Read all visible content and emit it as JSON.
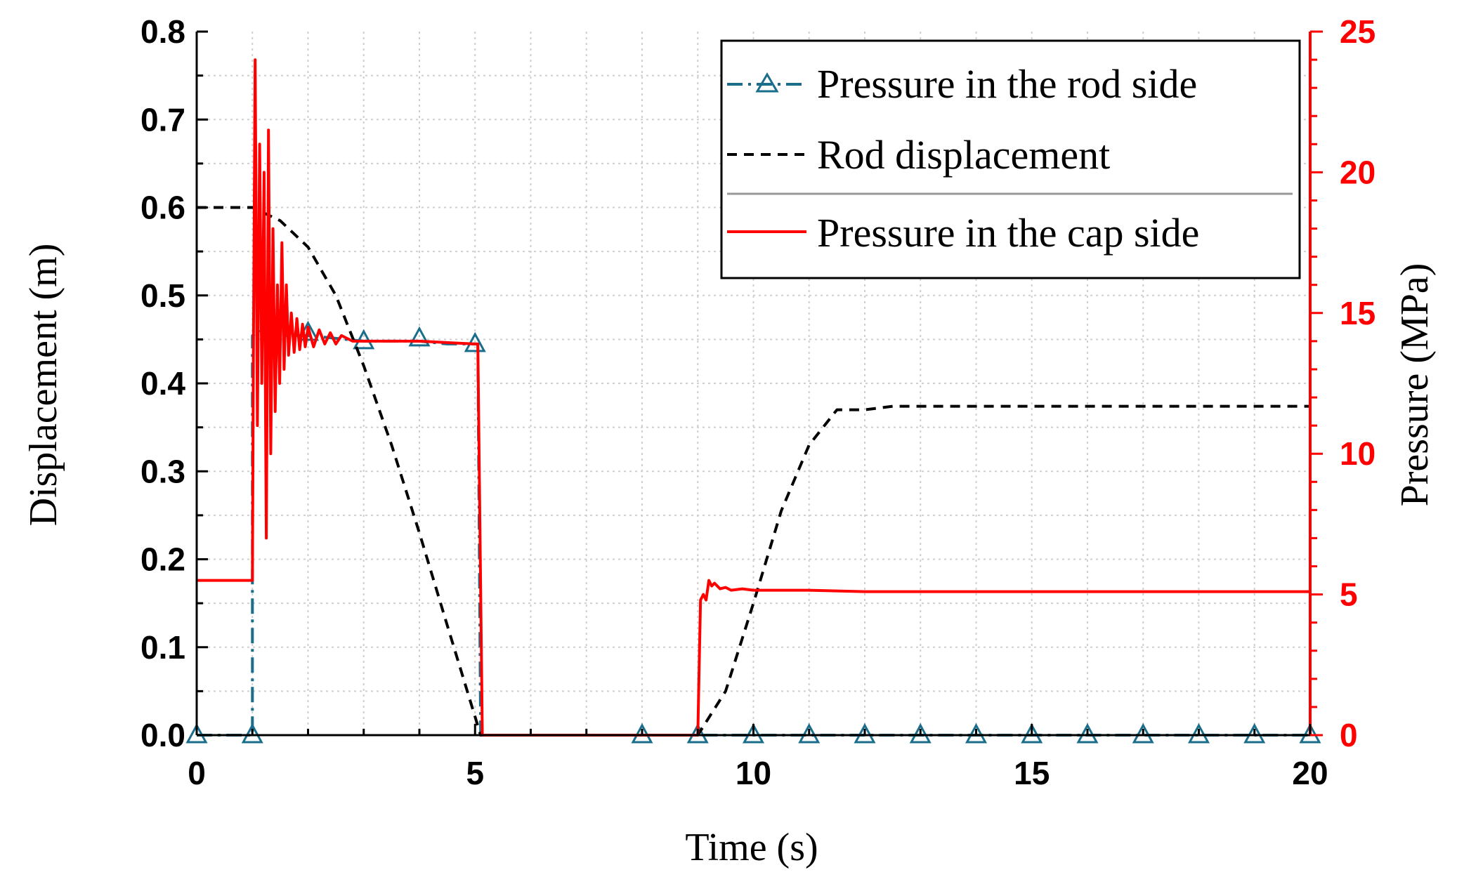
{
  "chart_data": {
    "type": "line",
    "xlabel": "Time (s)",
    "ylabel_left": "Displacement (m)",
    "ylabel_right": "Pressure (MPa)",
    "xlim": [
      0,
      20
    ],
    "ylim_left": [
      0,
      0.8
    ],
    "ylim_right": [
      0,
      25
    ],
    "x_ticks": [
      0,
      5,
      10,
      15,
      20
    ],
    "x_tick_labels": [
      "0",
      "5",
      "10",
      "15",
      "20"
    ],
    "y_left_ticks": [
      0.0,
      0.1,
      0.2,
      0.3,
      0.4,
      0.5,
      0.6,
      0.7,
      0.8
    ],
    "y_left_tick_labels": [
      "0.0",
      "0.1",
      "0.2",
      "0.3",
      "0.4",
      "0.5",
      "0.6",
      "0.7",
      "0.8"
    ],
    "y_right_ticks": [
      0,
      5,
      10,
      15,
      20,
      25
    ],
    "y_right_tick_labels": [
      "0",
      "5",
      "10",
      "15",
      "20",
      "25"
    ],
    "grid": true,
    "legend_position": "top-right",
    "colors": {
      "rod": "#1a6e8c",
      "cap": "#ff0000",
      "disp": "#000000",
      "right_axis": "#ff0000"
    },
    "series": [
      {
        "name": "Pressure in the rod side",
        "axis": "right",
        "style": "dash-dot-triangle",
        "x": [
          0,
          1,
          1.0,
          1.3,
          1.6,
          2,
          2.5,
          3,
          3.5,
          4,
          4.5,
          5,
          5.05,
          5.1,
          8,
          9,
          10,
          11,
          12,
          13,
          14,
          15,
          16,
          17,
          18,
          19,
          20
        ],
        "y": [
          0,
          0,
          14.2,
          14.5,
          14.2,
          14.2,
          14.1,
          14.0,
          14.0,
          14.0,
          13.9,
          13.9,
          13.9,
          0,
          0,
          0,
          0,
          0,
          0,
          0,
          0,
          0,
          0,
          0,
          0,
          0,
          0
        ],
        "markers_x": [
          0,
          1,
          2,
          3,
          4,
          5,
          8,
          9,
          10,
          11,
          12,
          13,
          14,
          15,
          16,
          17,
          18,
          19,
          20
        ],
        "markers_y": [
          0,
          0,
          14.3,
          14.0,
          14.1,
          13.9,
          0,
          0,
          0,
          0,
          0,
          0,
          0,
          0,
          0,
          0,
          0,
          0,
          0
        ]
      },
      {
        "name": "Rod displacement",
        "axis": "left",
        "style": "dashed",
        "x": [
          0,
          0.5,
          1.0,
          1.5,
          2.0,
          2.5,
          3.0,
          3.5,
          4.0,
          4.5,
          5.1,
          9.0,
          9.5,
          10,
          10.5,
          11,
          11.5,
          12,
          12.5,
          13,
          20
        ],
        "y": [
          0.6,
          0.6,
          0.6,
          0.585,
          0.555,
          0.5,
          0.42,
          0.33,
          0.23,
          0.125,
          0.0,
          0.0,
          0.05,
          0.15,
          0.255,
          0.33,
          0.37,
          0.37,
          0.374,
          0.374,
          0.374
        ]
      },
      {
        "name": "Pressure in the cap side",
        "axis": "right",
        "style": "solid",
        "x": [
          0,
          1.0,
          1.02,
          1.05,
          1.09,
          1.13,
          1.17,
          1.21,
          1.25,
          1.29,
          1.33,
          1.37,
          1.41,
          1.45,
          1.49,
          1.53,
          1.57,
          1.61,
          1.65,
          1.7,
          1.75,
          1.8,
          1.85,
          1.9,
          1.95,
          2.0,
          2.1,
          2.2,
          2.3,
          2.4,
          2.5,
          2.6,
          2.8,
          3.0,
          4.0,
          5.0,
          5.05,
          5.13,
          9.0,
          9.05,
          9.1,
          9.15,
          9.2,
          9.25,
          9.3,
          9.4,
          9.5,
          9.6,
          9.8,
          10.0,
          11.0,
          12.0,
          20
        ],
        "y": [
          5.5,
          5.5,
          14.0,
          24.0,
          11.0,
          21.0,
          12.5,
          20.0,
          7.0,
          21.5,
          10.0,
          18.0,
          11.5,
          16.0,
          12.5,
          17.5,
          13.0,
          16.0,
          13.5,
          15.0,
          13.6,
          14.8,
          13.7,
          14.6,
          13.8,
          14.5,
          13.8,
          14.4,
          13.9,
          14.3,
          13.9,
          14.2,
          14.0,
          14.0,
          14.0,
          13.9,
          13.9,
          0.0,
          0.0,
          4.8,
          5.0,
          4.8,
          5.5,
          5.3,
          5.4,
          5.2,
          5.25,
          5.15,
          5.2,
          5.15,
          5.15,
          5.1,
          5.1
        ]
      }
    ]
  }
}
